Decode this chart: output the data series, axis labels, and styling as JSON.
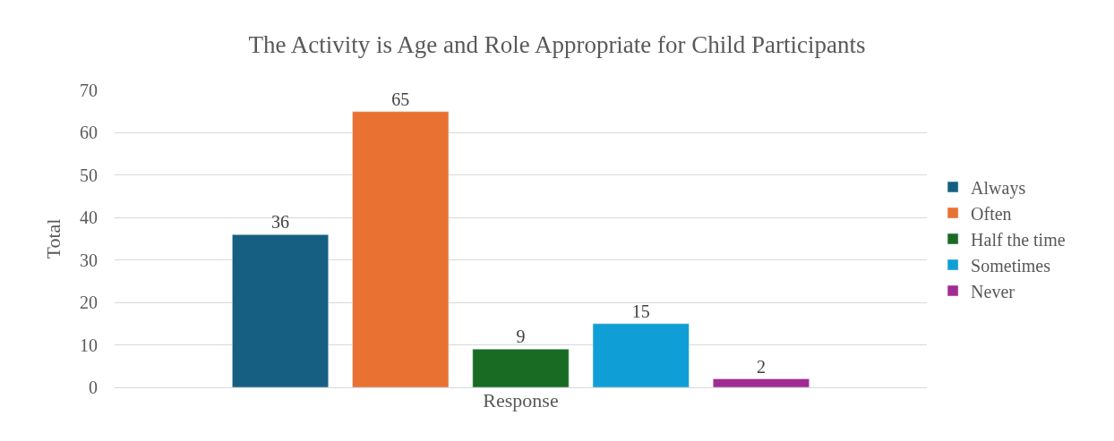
{
  "chart_data": {
    "type": "bar",
    "title": "The Activity is Age and Role Appropriate for Child Participants",
    "xlabel": "Response",
    "ylabel": "Total",
    "categories": [
      null
    ],
    "series": [
      {
        "name": "Always",
        "color": "#175f82",
        "values": [
          36
        ]
      },
      {
        "name": "Often",
        "color": "#e97132",
        "values": [
          65
        ]
      },
      {
        "name": "Half the time",
        "color": "#196b24",
        "values": [
          9
        ]
      },
      {
        "name": "Sometimes",
        "color": "#0f9ed5",
        "values": [
          15
        ]
      },
      {
        "name": "Never",
        "color": "#a02b93",
        "values": [
          2
        ]
      }
    ],
    "ylim": [
      0,
      70
    ],
    "yticks": [
      0,
      10,
      20,
      30,
      40,
      50,
      60,
      70
    ],
    "grid": "y",
    "legend": "right",
    "data_labels": true
  }
}
